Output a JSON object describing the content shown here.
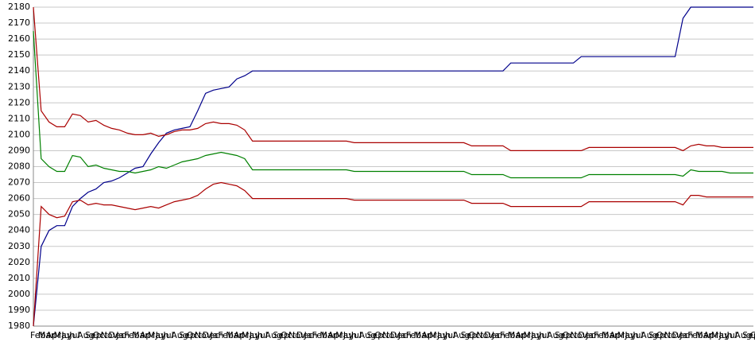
{
  "chart_data": {
    "type": "line",
    "categories": [
      "Feb",
      "Mar",
      "Apr",
      "May",
      "Jun",
      "Jul",
      "Aug",
      "Sep",
      "Oct",
      "Nov",
      "Dec",
      "Jan",
      "Feb",
      "Mar",
      "Apr",
      "May",
      "Jun",
      "Jul",
      "Aug",
      "Sep",
      "Oct",
      "Nov",
      "Dec",
      "Jan",
      "Feb",
      "Mar",
      "Apr",
      "May",
      "Jun",
      "Jul",
      "Aug",
      "Sep",
      "Oct",
      "Nov",
      "Dec",
      "Jan",
      "Feb",
      "Mar",
      "Apr",
      "May",
      "Jun",
      "Jul",
      "Aug",
      "Sep",
      "Oct",
      "Nov",
      "Dec",
      "Jan",
      "Feb",
      "Mar",
      "Apr",
      "May",
      "Jun",
      "Jul",
      "Aug",
      "Sep",
      "Oct",
      "Nov",
      "Dec",
      "Jan",
      "Feb",
      "Mar",
      "Apr",
      "May",
      "Jun",
      "Jul",
      "Aug",
      "Sep",
      "Oct",
      "Nov",
      "Dec",
      "Jan",
      "Feb",
      "Mar",
      "Apr",
      "May",
      "Jun",
      "Jul",
      "Aug",
      "Sep",
      "Oct",
      "Nov",
      "Dec",
      "Jan",
      "Feb",
      "Mar",
      "Apr",
      "May",
      "Jun",
      "Jul",
      "Aug",
      "Sep",
      "Oct"
    ],
    "series": [
      {
        "color": "#00008b",
        "values": [
          1980,
          2030,
          2040,
          2043,
          2043,
          2055,
          2060,
          2064,
          2066,
          2070,
          2071,
          2073,
          2076,
          2079,
          2080,
          2088,
          2095,
          2101,
          2103,
          2104,
          2105,
          2115,
          2126,
          2128,
          2129,
          2130,
          2135,
          2137,
          2140,
          2140,
          2140,
          2140,
          2140,
          2140,
          2140,
          2140,
          2140,
          2140,
          2140,
          2140,
          2140,
          2140,
          2140,
          2140,
          2140,
          2140,
          2140,
          2140,
          2140,
          2140,
          2140,
          2140,
          2140,
          2140,
          2140,
          2140,
          2140,
          2140,
          2140,
          2140,
          2140,
          2145,
          2145,
          2145,
          2145,
          2145,
          2145,
          2145,
          2145,
          2145,
          2149,
          2149,
          2149,
          2149,
          2149,
          2149,
          2149,
          2149,
          2149,
          2149,
          2149,
          2149,
          2149,
          2173,
          2180,
          2180,
          2180,
          2180,
          2180,
          2180,
          2180,
          2180,
          2180
        ]
      },
      {
        "color": "#aa0000",
        "values": [
          2180,
          2115,
          2108,
          2105,
          2105,
          2113,
          2112,
          2108,
          2109,
          2106,
          2104,
          2103,
          2101,
          2100,
          2100,
          2101,
          2099,
          2100,
          2102,
          2103,
          2103,
          2104,
          2107,
          2108,
          2107,
          2107,
          2106,
          2103,
          2096,
          2096,
          2096,
          2096,
          2096,
          2096,
          2096,
          2096,
          2096,
          2096,
          2096,
          2096,
          2096,
          2095,
          2095,
          2095,
          2095,
          2095,
          2095,
          2095,
          2095,
          2095,
          2095,
          2095,
          2095,
          2095,
          2095,
          2095,
          2093,
          2093,
          2093,
          2093,
          2093,
          2090,
          2090,
          2090,
          2090,
          2090,
          2090,
          2090,
          2090,
          2090,
          2090,
          2092,
          2092,
          2092,
          2092,
          2092,
          2092,
          2092,
          2092,
          2092,
          2092,
          2092,
          2092,
          2090,
          2093,
          2094,
          2093,
          2093,
          2092,
          2092,
          2092,
          2092,
          2092
        ]
      },
      {
        "color": "#008000",
        "values": [
          2165,
          2085,
          2080,
          2077,
          2077,
          2087,
          2086,
          2080,
          2081,
          2079,
          2078,
          2077,
          2077,
          2076,
          2077,
          2078,
          2080,
          2079,
          2081,
          2083,
          2084,
          2085,
          2087,
          2088,
          2089,
          2088,
          2087,
          2085,
          2078,
          2078,
          2078,
          2078,
          2078,
          2078,
          2078,
          2078,
          2078,
          2078,
          2078,
          2078,
          2078,
          2077,
          2077,
          2077,
          2077,
          2077,
          2077,
          2077,
          2077,
          2077,
          2077,
          2077,
          2077,
          2077,
          2077,
          2077,
          2075,
          2075,
          2075,
          2075,
          2075,
          2073,
          2073,
          2073,
          2073,
          2073,
          2073,
          2073,
          2073,
          2073,
          2073,
          2075,
          2075,
          2075,
          2075,
          2075,
          2075,
          2075,
          2075,
          2075,
          2075,
          2075,
          2075,
          2074,
          2078,
          2077,
          2077,
          2077,
          2077,
          2076,
          2076,
          2076,
          2076
        ]
      },
      {
        "color": "#aa0000",
        "values": [
          1980,
          2055,
          2050,
          2048,
          2049,
          2058,
          2059,
          2056,
          2057,
          2056,
          2056,
          2055,
          2054,
          2053,
          2054,
          2055,
          2054,
          2056,
          2058,
          2059,
          2060,
          2062,
          2066,
          2069,
          2070,
          2069,
          2068,
          2065,
          2060,
          2060,
          2060,
          2060,
          2060,
          2060,
          2060,
          2060,
          2060,
          2060,
          2060,
          2060,
          2060,
          2059,
          2059,
          2059,
          2059,
          2059,
          2059,
          2059,
          2059,
          2059,
          2059,
          2059,
          2059,
          2059,
          2059,
          2059,
          2057,
          2057,
          2057,
          2057,
          2057,
          2055,
          2055,
          2055,
          2055,
          2055,
          2055,
          2055,
          2055,
          2055,
          2055,
          2058,
          2058,
          2058,
          2058,
          2058,
          2058,
          2058,
          2058,
          2058,
          2058,
          2058,
          2058,
          2056,
          2062,
          2062,
          2061,
          2061,
          2061,
          2061,
          2061,
          2061,
          2061
        ]
      }
    ],
    "ylim": [
      1980,
      2180
    ],
    "yticks": [
      1980,
      1990,
      2000,
      2010,
      2020,
      2030,
      2040,
      2050,
      2060,
      2070,
      2080,
      2090,
      2100,
      2110,
      2120,
      2130,
      2140,
      2150,
      2160,
      2170,
      2180
    ],
    "grid": true
  }
}
